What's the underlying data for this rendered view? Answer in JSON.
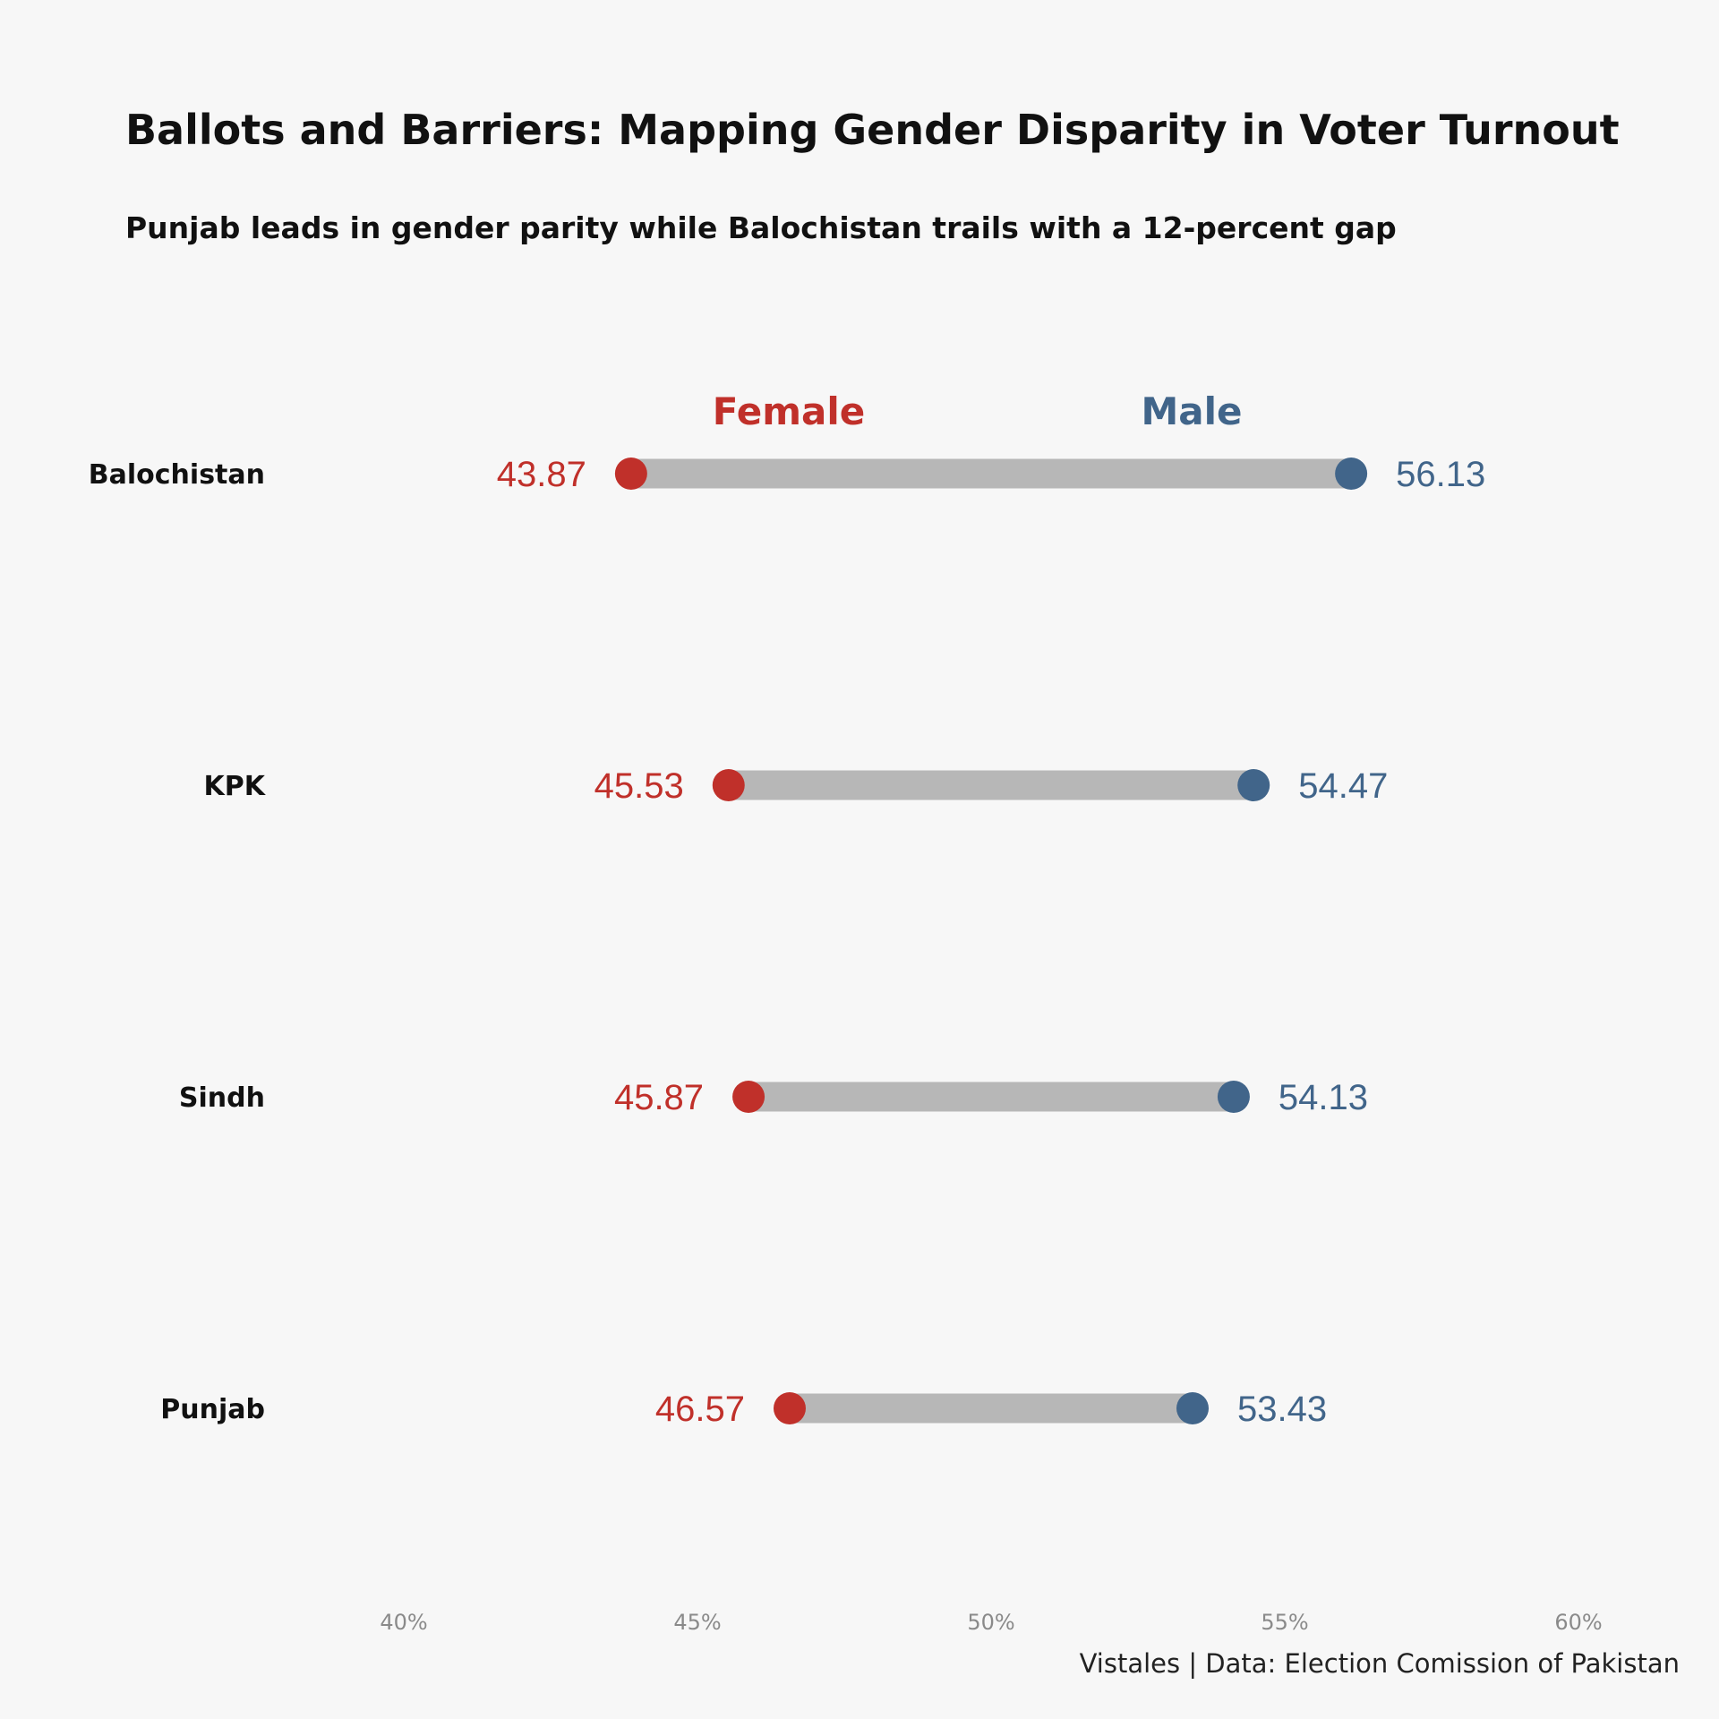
{
  "title": "Ballots and Barriers: Mapping Gender Disparity in Voter Turnout",
  "subtitle": "Punjab leads in gender parity while Balochistan trails with a 12-percent gap",
  "caption": "Vistales | Data: Election Comission of Pakistan",
  "colors": {
    "female": "#c0302a",
    "male": "#41658a",
    "bar": "#b7b7b7",
    "background": "#f7f7f7"
  },
  "chart_data": {
    "type": "dumbbell",
    "categories": [
      "Balochistan",
      "KPK",
      "Sindh",
      "Punjab"
    ],
    "series": [
      {
        "name": "Female",
        "values": [
          43.87,
          45.53,
          45.87,
          46.57
        ]
      },
      {
        "name": "Male",
        "values": [
          56.13,
          54.47,
          54.13,
          53.43
        ]
      }
    ],
    "xlim": [
      40,
      60
    ],
    "x_ticks": [
      40,
      45,
      50,
      55,
      60
    ],
    "x_tick_labels": [
      "40%",
      "45%",
      "50%",
      "55%",
      "60%"
    ],
    "grid": false,
    "legend": "above the top row, labels over series"
  }
}
